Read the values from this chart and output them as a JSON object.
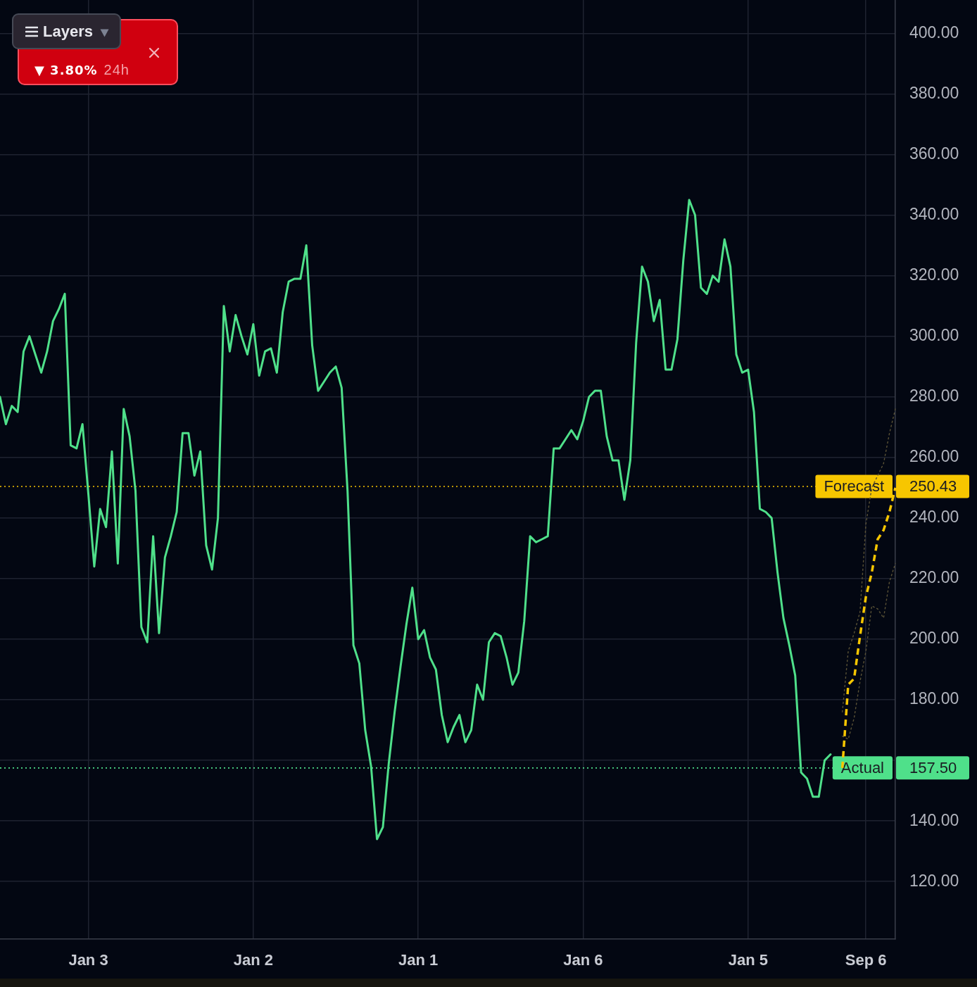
{
  "chart_data": {
    "type": "line",
    "categories": [
      null,
      null,
      null,
      null,
      null,
      null,
      null,
      null,
      null,
      null,
      null,
      null,
      null,
      null,
      null,
      "Jan 3",
      null,
      null,
      null,
      null,
      null,
      null,
      null,
      null,
      null,
      null,
      null,
      null,
      null,
      null,
      null,
      null,
      null,
      null,
      null,
      null,
      null,
      null,
      null,
      null,
      null,
      null,
      null,
      "Jan 2",
      null,
      null,
      null,
      null,
      null,
      null,
      null,
      null,
      null,
      null,
      null,
      null,
      null,
      null,
      null,
      null,
      null,
      null,
      null,
      null,
      null,
      null,
      null,
      null,
      null,
      null,
      null,
      "Jan 1",
      null,
      null,
      null,
      null,
      null,
      null,
      null,
      null,
      null,
      null,
      null,
      null,
      null,
      null,
      null,
      null,
      null,
      null,
      null,
      null,
      null,
      null,
      null,
      null,
      null,
      null,
      null,
      "Jan 6",
      null,
      null,
      null,
      null,
      null,
      null,
      null,
      null,
      null,
      null,
      null,
      null,
      null,
      null,
      null,
      null,
      null,
      null,
      null,
      null,
      null,
      null,
      null,
      null,
      null,
      null,
      null,
      "Jan 5",
      null,
      null,
      null,
      null,
      null,
      null,
      null,
      null,
      null,
      null,
      null,
      null,
      null,
      null,
      null,
      null,
      null,
      null,
      null,
      "Sep 6",
      null,
      null,
      null,
      null,
      null
    ],
    "series": [
      {
        "color": "#4fe08a",
        "values": [
          280,
          271,
          277,
          275,
          295,
          300,
          294,
          288,
          295,
          305,
          309,
          314,
          264,
          263,
          271,
          248,
          224,
          243,
          237,
          262,
          225,
          276,
          267,
          249,
          204,
          199,
          234,
          202,
          227,
          234,
          242,
          268,
          268,
          254,
          262,
          231,
          223,
          240,
          310,
          295,
          307,
          300,
          294,
          304,
          287,
          295,
          296,
          288,
          308,
          318,
          319,
          319,
          330,
          297,
          282,
          285,
          288,
          290,
          283,
          249,
          198,
          192,
          170,
          158,
          134,
          138,
          159,
          176,
          191,
          205,
          217,
          200,
          203,
          194,
          190,
          175,
          166,
          171,
          175,
          166,
          170,
          185,
          180,
          199,
          202,
          201,
          194,
          185,
          189,
          206,
          234,
          232,
          233,
          234,
          263,
          263,
          266,
          269,
          266,
          272,
          280,
          282,
          282,
          267,
          259,
          259,
          246,
          259,
          298,
          323,
          318,
          305,
          312,
          289,
          289,
          299,
          325,
          345,
          340,
          316,
          314,
          320,
          318,
          332,
          323,
          294,
          288,
          289,
          275,
          243,
          242,
          240,
          222,
          207,
          198,
          188,
          156,
          154,
          148,
          148,
          160,
          162,
          null,
          null,
          null,
          null,
          null,
          null,
          null,
          null,
          null,
          null,
          null
        ]
      },
      {
        "color": "#f7c600",
        "line_style": "dashed",
        "values": [
          null,
          null,
          null,
          null,
          null,
          null,
          null,
          null,
          null,
          null,
          null,
          null,
          null,
          null,
          null,
          null,
          null,
          null,
          null,
          null,
          null,
          null,
          null,
          null,
          null,
          null,
          null,
          null,
          null,
          null,
          null,
          null,
          null,
          null,
          null,
          null,
          null,
          null,
          null,
          null,
          null,
          null,
          null,
          null,
          null,
          null,
          null,
          null,
          null,
          null,
          null,
          null,
          null,
          null,
          null,
          null,
          null,
          null,
          null,
          null,
          null,
          null,
          null,
          null,
          null,
          null,
          null,
          null,
          null,
          null,
          null,
          null,
          null,
          null,
          null,
          null,
          null,
          null,
          null,
          null,
          null,
          null,
          null,
          null,
          null,
          null,
          null,
          null,
          null,
          null,
          null,
          null,
          null,
          null,
          null,
          null,
          null,
          null,
          null,
          null,
          null,
          null,
          null,
          null,
          null,
          null,
          null,
          null,
          null,
          null,
          null,
          null,
          null,
          null,
          null,
          null,
          null,
          null,
          null,
          null,
          null,
          null,
          null,
          null,
          null,
          null,
          null,
          null,
          null,
          null,
          null,
          null,
          null,
          null,
          null,
          null,
          null,
          null,
          null,
          null,
          null,
          null,
          null,
          157.5,
          185,
          187,
          201,
          214,
          222,
          233,
          236,
          242,
          250
        ]
      },
      {
        "color": "#5a5236",
        "line_style": "dotted",
        "values": [
          null,
          null,
          null,
          null,
          null,
          null,
          null,
          null,
          null,
          null,
          null,
          null,
          null,
          null,
          null,
          null,
          null,
          null,
          null,
          null,
          null,
          null,
          null,
          null,
          null,
          null,
          null,
          null,
          null,
          null,
          null,
          null,
          null,
          null,
          null,
          null,
          null,
          null,
          null,
          null,
          null,
          null,
          null,
          null,
          null,
          null,
          null,
          null,
          null,
          null,
          null,
          null,
          null,
          null,
          null,
          null,
          null,
          null,
          null,
          null,
          null,
          null,
          null,
          null,
          null,
          null,
          null,
          null,
          null,
          null,
          null,
          null,
          null,
          null,
          null,
          null,
          null,
          null,
          null,
          null,
          null,
          null,
          null,
          null,
          null,
          null,
          null,
          null,
          null,
          null,
          null,
          null,
          null,
          null,
          null,
          null,
          null,
          null,
          null,
          null,
          null,
          null,
          null,
          null,
          null,
          null,
          null,
          null,
          null,
          null,
          null,
          null,
          null,
          null,
          null,
          null,
          null,
          null,
          null,
          null,
          null,
          null,
          null,
          null,
          null,
          null,
          null,
          null,
          null,
          null,
          null,
          null,
          null,
          null,
          null,
          null,
          null,
          null,
          null,
          null,
          null,
          null,
          null,
          176,
          196,
          202,
          209,
          238,
          250,
          254,
          258,
          268,
          276
        ]
      },
      {
        "color": "#5a5236",
        "line_style": "dotted",
        "values": [
          null,
          null,
          null,
          null,
          null,
          null,
          null,
          null,
          null,
          null,
          null,
          null,
          null,
          null,
          null,
          null,
          null,
          null,
          null,
          null,
          null,
          null,
          null,
          null,
          null,
          null,
          null,
          null,
          null,
          null,
          null,
          null,
          null,
          null,
          null,
          null,
          null,
          null,
          null,
          null,
          null,
          null,
          null,
          null,
          null,
          null,
          null,
          null,
          null,
          null,
          null,
          null,
          null,
          null,
          null,
          null,
          null,
          null,
          null,
          null,
          null,
          null,
          null,
          null,
          null,
          null,
          null,
          null,
          null,
          null,
          null,
          null,
          null,
          null,
          null,
          null,
          null,
          null,
          null,
          null,
          null,
          null,
          null,
          null,
          null,
          null,
          null,
          null,
          null,
          null,
          null,
          null,
          null,
          null,
          null,
          null,
          null,
          null,
          null,
          null,
          null,
          null,
          null,
          null,
          null,
          null,
          null,
          null,
          null,
          null,
          null,
          null,
          null,
          null,
          null,
          null,
          null,
          null,
          null,
          null,
          null,
          null,
          null,
          null,
          null,
          null,
          null,
          null,
          null,
          null,
          null,
          null,
          null,
          null,
          null,
          null,
          null,
          null,
          null,
          null,
          null,
          null,
          null,
          168,
          167,
          174,
          186,
          196,
          211,
          210,
          207,
          219,
          225
        ]
      }
    ],
    "ylim": [
      101,
      411
    ],
    "yticks": [
      {
        "value": 120,
        "label": "120.00"
      },
      {
        "value": 140,
        "label": "140.00"
      },
      {
        "value": 160,
        "label": null
      },
      {
        "value": 180,
        "label": "180.00"
      },
      {
        "value": 200,
        "label": "200.00"
      },
      {
        "value": 220,
        "label": "220.00"
      },
      {
        "value": 240,
        "label": "240.00"
      },
      {
        "value": 260,
        "label": "260.00"
      },
      {
        "value": 280,
        "label": "280.00"
      },
      {
        "value": 300,
        "label": "300.00"
      },
      {
        "value": 320,
        "label": "320.00"
      },
      {
        "value": 340,
        "label": "340.00"
      },
      {
        "value": 360,
        "label": "360.00"
      },
      {
        "value": 380,
        "label": "380.00"
      },
      {
        "value": 400,
        "label": "400.00"
      }
    ],
    "grid": true,
    "marker": "none",
    "ref_lines": [
      {
        "axis": "y",
        "value": 250.43,
        "label": "Forecast",
        "color": "#f7c600",
        "line_style": "dotted"
      },
      {
        "axis": "y",
        "value": 157.5,
        "label": "Actual",
        "color": "#4fe08a",
        "line_style": "dotted"
      }
    ],
    "annotations": [
      "250.43",
      "157.50",
      "Layers",
      "▼ 3.80%",
      "24h"
    ]
  }
}
